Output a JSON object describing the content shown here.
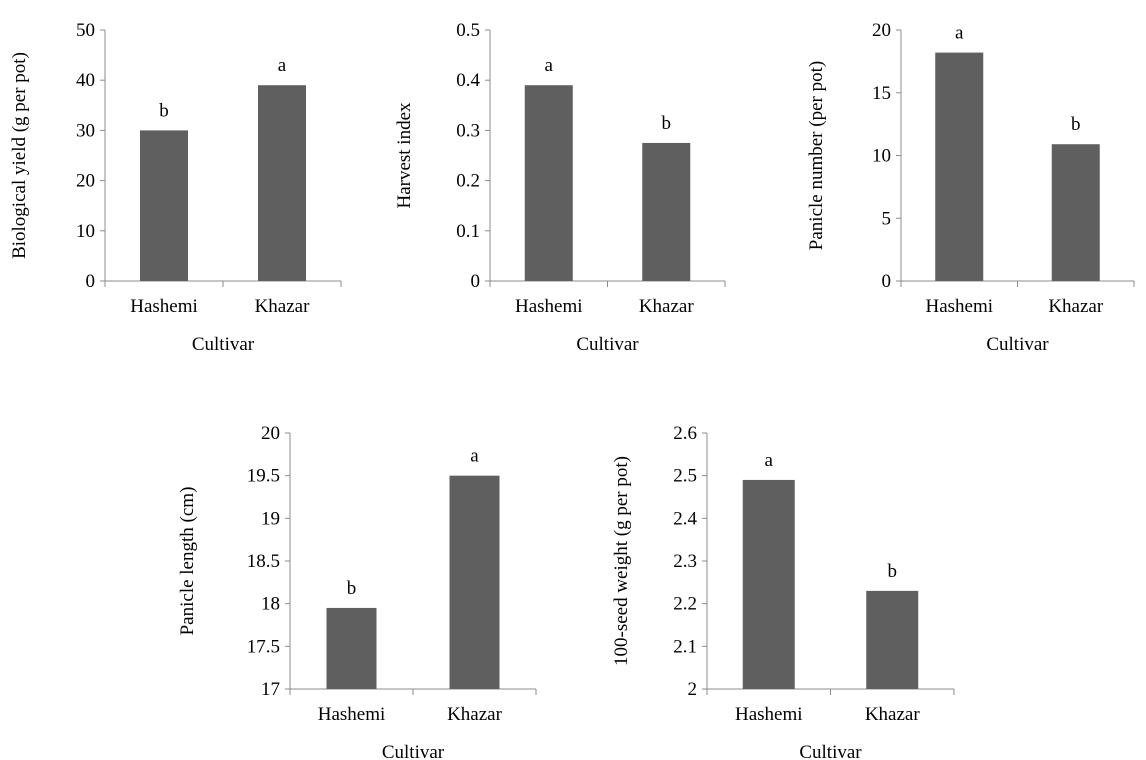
{
  "figure": {
    "colors": {
      "bar": "#5f5f5f",
      "axis": "#8c8c8c",
      "text": "#000000"
    }
  },
  "chart_data": [
    {
      "type": "bar",
      "categories": [
        "Hashemi",
        "Khazar"
      ],
      "values": [
        30,
        39
      ],
      "significance": [
        "b",
        "a"
      ],
      "xlabel": "Cultivar",
      "ylabel": "Biological yield (g per pot)",
      "ylim": [
        0,
        50
      ],
      "yticks": [
        "0",
        "10",
        "20",
        "30",
        "40",
        "50"
      ]
    },
    {
      "type": "bar",
      "categories": [
        "Hashemi",
        "Khazar"
      ],
      "values": [
        0.39,
        0.275
      ],
      "significance": [
        "a",
        "b"
      ],
      "xlabel": "Cultivar",
      "ylabel": "Harvest index",
      "ylim": [
        0,
        0.5
      ],
      "yticks": [
        "0",
        "0.1",
        "0.2",
        "0.3",
        "0.4",
        "0.5"
      ]
    },
    {
      "type": "bar",
      "categories": [
        "Hashemi",
        "Khazar"
      ],
      "values": [
        18.2,
        10.9
      ],
      "significance": [
        "a",
        "b"
      ],
      "xlabel": "Cultivar",
      "ylabel": "Panicle number (per pot)",
      "ylim": [
        0,
        20
      ],
      "yticks": [
        "0",
        "5",
        "10",
        "15",
        "20"
      ]
    },
    {
      "type": "bar",
      "categories": [
        "Hashemi",
        "Khazar"
      ],
      "values": [
        17.95,
        19.5
      ],
      "significance": [
        "b",
        "a"
      ],
      "xlabel": "Cultivar",
      "ylabel": "Panicle length (cm)",
      "ylim": [
        17,
        20
      ],
      "yticks": [
        "17",
        "17.5",
        "18",
        "18.5",
        "19",
        "19.5",
        "20"
      ]
    },
    {
      "type": "bar",
      "categories": [
        "Hashemi",
        "Khazar"
      ],
      "values": [
        2.49,
        2.23
      ],
      "significance": [
        "a",
        "b"
      ],
      "xlabel": "Cultivar",
      "ylabel": "100-seed weight (g per pot)",
      "ylim": [
        2,
        2.6
      ],
      "yticks": [
        "2",
        "2.1",
        "2.2",
        "2.3",
        "2.4",
        "2.5",
        "2.6"
      ]
    }
  ]
}
